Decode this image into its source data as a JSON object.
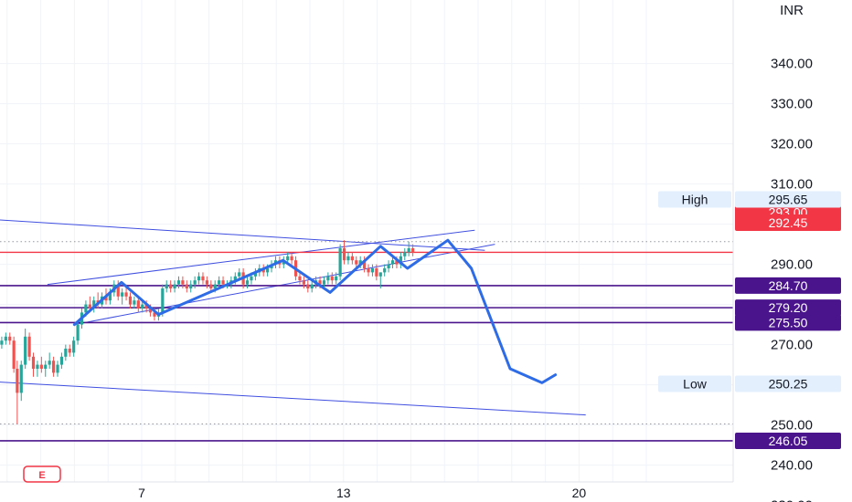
{
  "currency": "INR",
  "chart_data": {
    "type": "candlestick",
    "title": "",
    "xlabel": "",
    "ylabel": "",
    "ylim": [
      226,
      346
    ],
    "y_ticks": [
      230,
      240,
      250,
      260,
      270,
      280,
      290,
      300,
      310,
      320,
      330,
      340
    ],
    "y_tick_labels": [
      "230.00",
      "240.00",
      "250.00",
      "260.00",
      "270.00",
      "280.00",
      "290.00",
      "300.00",
      "310.00",
      "320.00",
      "330.00",
      "340.00"
    ],
    "x_ticks": [
      {
        "label": "7",
        "day": 7
      },
      {
        "label": "13",
        "day": 13
      },
      {
        "label": "20",
        "day": 20
      }
    ],
    "grid": true,
    "current_price": {
      "value": 293.0,
      "label": "293.00",
      "color": "#f23645"
    },
    "current_low": {
      "value": 292.45,
      "label": "292.45",
      "color": "#f23645"
    },
    "high": {
      "label": "High",
      "value": 295.65,
      "value_label": "295.65"
    },
    "low": {
      "label": "Low",
      "value": 250.25,
      "value_label": "250.25"
    },
    "levels": [
      {
        "value": 284.7,
        "label": "284.70",
        "color": "#4a148c"
      },
      {
        "value": 279.2,
        "label": "279.20",
        "color": "#4a148c"
      },
      {
        "value": 275.5,
        "label": "275.50",
        "color": "#4a148c"
      },
      {
        "value": 246.05,
        "label": "246.05",
        "color": "#4a148c"
      }
    ],
    "candles": [
      [
        2.0,
        277,
        279,
        275,
        276
      ],
      [
        2.12,
        276,
        278,
        274,
        275
      ],
      [
        2.24,
        275,
        276,
        272,
        273
      ],
      [
        2.36,
        273,
        274,
        270,
        271
      ],
      [
        2.48,
        271,
        273,
        270,
        272
      ],
      [
        2.6,
        272,
        273,
        270,
        271
      ],
      [
        2.72,
        271,
        272,
        269,
        270
      ],
      [
        2.84,
        270,
        272,
        269,
        271
      ],
      [
        2.96,
        271,
        273,
        270,
        272
      ],
      [
        3.08,
        272,
        273,
        270,
        271
      ],
      [
        3.2,
        271,
        272,
        263,
        264
      ],
      [
        3.3,
        264,
        266,
        250.25,
        258
      ],
      [
        3.42,
        258,
        266,
        256,
        265
      ],
      [
        3.54,
        265,
        274,
        264,
        272
      ],
      [
        3.66,
        272,
        273,
        266,
        267
      ],
      [
        3.78,
        267,
        268,
        262,
        264
      ],
      [
        3.9,
        264,
        266,
        262,
        265
      ],
      [
        4.02,
        265,
        267,
        263,
        264
      ],
      [
        4.14,
        264,
        266,
        262,
        265
      ],
      [
        4.26,
        265,
        268,
        264,
        266
      ],
      [
        4.38,
        266,
        267,
        262,
        263
      ],
      [
        4.5,
        263,
        266,
        262,
        265
      ],
      [
        4.62,
        265,
        268,
        264,
        267
      ],
      [
        4.74,
        267,
        270,
        266,
        269
      ],
      [
        4.86,
        269,
        270,
        267,
        268
      ],
      [
        4.98,
        268,
        272,
        267,
        271
      ],
      [
        5.1,
        271,
        276,
        270,
        275
      ],
      [
        5.22,
        275,
        279,
        274,
        278
      ],
      [
        5.34,
        278,
        281,
        277,
        280
      ],
      [
        5.46,
        280,
        282,
        278,
        279
      ],
      [
        5.58,
        279,
        282,
        278,
        281
      ],
      [
        5.7,
        281,
        283,
        279,
        280
      ],
      [
        5.82,
        280,
        283,
        279,
        282
      ],
      [
        5.94,
        282,
        284,
        280,
        281
      ],
      [
        6.06,
        281,
        284,
        280,
        283
      ],
      [
        6.18,
        283,
        286,
        282,
        285
      ],
      [
        6.3,
        285,
        286,
        281,
        282
      ],
      [
        6.42,
        282,
        284,
        280,
        283
      ],
      [
        6.54,
        283,
        285,
        281,
        282
      ],
      [
        6.66,
        282,
        283,
        279,
        280
      ],
      [
        6.78,
        280,
        282,
        279,
        281
      ],
      [
        6.9,
        281,
        282,
        278,
        279
      ],
      [
        7.02,
        279,
        281,
        278,
        280
      ],
      [
        7.14,
        280,
        281,
        278,
        279
      ],
      [
        7.26,
        279,
        280,
        277,
        278
      ],
      [
        7.38,
        278,
        279,
        276,
        277
      ],
      [
        7.5,
        277,
        279,
        276,
        278
      ],
      [
        7.62,
        278,
        285,
        277,
        284
      ],
      [
        7.74,
        284,
        286,
        283,
        285
      ],
      [
        7.86,
        285,
        286,
        283,
        284
      ],
      [
        7.98,
        284,
        286,
        283,
        285
      ],
      [
        8.1,
        285,
        287,
        284,
        286
      ],
      [
        8.22,
        286,
        287,
        284,
        285
      ],
      [
        8.34,
        285,
        286,
        283,
        284
      ],
      [
        8.46,
        284,
        286,
        283,
        285
      ],
      [
        8.58,
        285,
        287,
        284,
        286
      ],
      [
        8.7,
        286,
        288,
        285,
        287
      ],
      [
        8.82,
        287,
        288,
        285,
        286
      ],
      [
        8.94,
        286,
        287,
        284,
        285
      ],
      [
        9.06,
        285,
        286,
        283,
        284
      ],
      [
        9.18,
        284,
        286,
        283,
        285
      ],
      [
        9.3,
        285,
        287,
        284,
        286
      ],
      [
        9.42,
        286,
        287,
        284,
        285
      ],
      [
        9.54,
        285,
        286,
        284,
        285
      ],
      [
        9.66,
        285,
        287,
        284,
        286
      ],
      [
        9.78,
        286,
        288,
        285,
        287
      ],
      [
        9.9,
        287,
        289,
        286,
        288
      ],
      [
        10.02,
        288,
        289,
        284,
        285
      ],
      [
        10.14,
        285,
        287,
        284,
        286
      ],
      [
        10.26,
        286,
        288,
        285,
        287
      ],
      [
        10.38,
        287,
        289,
        286,
        288
      ],
      [
        10.5,
        288,
        290,
        287,
        289
      ],
      [
        10.62,
        289,
        290,
        287,
        288
      ],
      [
        10.74,
        288,
        290,
        287,
        289
      ],
      [
        10.86,
        289,
        291,
        288,
        290
      ],
      [
        10.98,
        290,
        292,
        289,
        291
      ],
      [
        11.1,
        291,
        292,
        289,
        290
      ],
      [
        11.22,
        290,
        292,
        289,
        291
      ],
      [
        11.34,
        291,
        293,
        290,
        292
      ],
      [
        11.46,
        292,
        293,
        290,
        291
      ],
      [
        11.58,
        291,
        292,
        286,
        287
      ],
      [
        11.7,
        287,
        288,
        285,
        286
      ],
      [
        11.82,
        286,
        287,
        284,
        285
      ],
      [
        11.94,
        285,
        286,
        283,
        284
      ],
      [
        12.06,
        284,
        286,
        283,
        285
      ],
      [
        12.18,
        285,
        287,
        284,
        286
      ],
      [
        12.3,
        286,
        287,
        284,
        285
      ],
      [
        12.42,
        285,
        287,
        284,
        286
      ],
      [
        12.54,
        286,
        288,
        285,
        287
      ],
      [
        12.66,
        287,
        288,
        285,
        286
      ],
      [
        12.78,
        286,
        288,
        285,
        287
      ],
      [
        12.9,
        287,
        295,
        286,
        294
      ],
      [
        13.02,
        294,
        296,
        290,
        291
      ],
      [
        13.14,
        291,
        293,
        290,
        292
      ],
      [
        13.26,
        292,
        293,
        290,
        291
      ],
      [
        13.38,
        291,
        292,
        289,
        290
      ],
      [
        13.5,
        290,
        292,
        289,
        291
      ],
      [
        13.62,
        291,
        292,
        288,
        289
      ],
      [
        13.74,
        289,
        290,
        287,
        288
      ],
      [
        13.86,
        288,
        290,
        287,
        289
      ],
      [
        13.98,
        289,
        290,
        286,
        287
      ],
      [
        14.1,
        287,
        288,
        284,
        288
      ],
      [
        14.22,
        288,
        290,
        287,
        289
      ],
      [
        14.34,
        289,
        291,
        288,
        290
      ],
      [
        14.46,
        290,
        292,
        289,
        291
      ],
      [
        14.58,
        291,
        292,
        289,
        290
      ],
      [
        14.7,
        290,
        293,
        289,
        292
      ],
      [
        14.82,
        292,
        294,
        291,
        293
      ],
      [
        14.94,
        293,
        295.65,
        292,
        294
      ],
      [
        15.06,
        294,
        295,
        292,
        293
      ]
    ],
    "trend_lines": [
      {
        "kind": "channel-upper",
        "points": [
          [
            0,
            302.5
          ],
          [
            17.2,
            293.5
          ]
        ]
      },
      {
        "kind": "channel-lower",
        "points": [
          [
            0,
            262.0
          ],
          [
            20.2,
            252.5
          ]
        ]
      },
      {
        "kind": "wedge-upper",
        "points": [
          [
            4.2,
            285.0
          ],
          [
            16.9,
            298.5
          ]
        ]
      },
      {
        "kind": "wedge-lower",
        "points": [
          [
            5.0,
            275.0
          ],
          [
            17.5,
            295.0
          ]
        ]
      }
    ],
    "pattern_path": {
      "points": [
        [
          5.0,
          275.0
        ],
        [
          6.4,
          285.5
        ],
        [
          7.5,
          277.5
        ],
        [
          11.2,
          291.0
        ],
        [
          12.6,
          283.0
        ],
        [
          14.1,
          294.5
        ],
        [
          14.9,
          289.0
        ],
        [
          16.1,
          296.0
        ],
        [
          16.8,
          289.0
        ],
        [
          17.95,
          264.0
        ],
        [
          18.9,
          260.5
        ],
        [
          19.3,
          262.5
        ]
      ],
      "color": "#2e6be6"
    },
    "event_marker": "E"
  }
}
